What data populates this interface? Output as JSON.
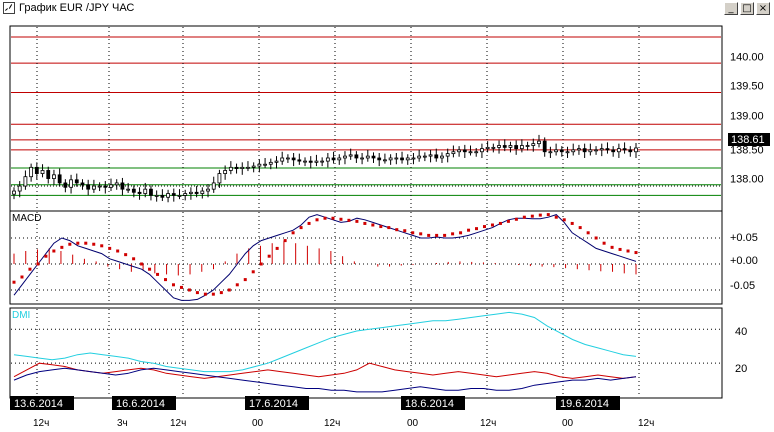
{
  "window": {
    "title": "График EUR /JPY  ЧАС",
    "buttons": {
      "minimize": "_",
      "maximize": "□",
      "close": "×"
    }
  },
  "colors": {
    "candle": "#000000",
    "resistance": "#c00000",
    "support": "#008000",
    "macd_line": "#00006e",
    "signal_dots": "#d00000",
    "histogram": "#d00000",
    "dmi_adx": "#22cfe0",
    "dmi_plus": "#cc0000",
    "dmi_minus": "#000080",
    "date_tag_bg": "#000000",
    "date_tag_text": "#ffffff"
  },
  "price_panel": {
    "current_price": "138.61",
    "ticks": [
      "140.00",
      "139.50",
      "139.00",
      "138.50",
      "138.00"
    ],
    "red_levels": [
      140.39,
      139.97,
      139.5,
      138.99,
      138.74,
      138.58
    ],
    "green_levels": [
      138.29,
      138.02,
      137.85
    ],
    "dotted_level": 138.0
  },
  "macd_panel": {
    "label": "MACD",
    "ticks": [
      "+0.05",
      "+0.00",
      "-0.05"
    ]
  },
  "dmi_panel": {
    "label": "DMI",
    "ticks": [
      "40",
      "20"
    ]
  },
  "time_axis": {
    "date_tags": [
      "13.6.2014",
      "16.6.2014",
      "17.6.2014",
      "18.6.2014",
      "19.6.2014"
    ],
    "hour_labels": [
      "12ч",
      "3ч",
      "12ч",
      "00",
      "12ч",
      "00",
      "12ч",
      "00",
      "12ч"
    ]
  },
  "chart_data": [
    {
      "type": "line",
      "subtype": "candlestick",
      "title": "",
      "ylim": [
        137.6,
        140.55
      ],
      "y_ticks": [
        138.0,
        138.5,
        139.0,
        139.5,
        140.0
      ],
      "last_value": 138.61,
      "close": [
        137.92,
        138.0,
        138.15,
        138.3,
        138.2,
        138.25,
        138.12,
        138.18,
        138.05,
        137.98,
        138.1,
        138.05,
        138.02,
        137.95,
        138.0,
        138.0,
        137.98,
        138.02,
        138.05,
        137.95,
        137.95,
        137.9,
        137.88,
        137.95,
        137.85,
        137.85,
        137.82,
        137.88,
        137.85,
        137.85,
        137.88,
        137.9,
        137.88,
        137.92,
        137.95,
        138.05,
        138.2,
        138.25,
        138.3,
        138.28,
        138.3,
        138.3,
        138.32,
        138.35,
        138.35,
        138.38,
        138.4,
        138.45,
        138.45,
        138.42,
        138.4,
        138.4,
        138.38,
        138.4,
        138.4,
        138.45,
        138.42,
        138.45,
        138.48,
        138.5,
        138.45,
        138.45,
        138.48,
        138.45,
        138.42,
        138.42,
        138.45,
        138.45,
        138.42,
        138.45,
        138.45,
        138.48,
        138.48,
        138.5,
        138.45,
        138.48,
        138.52,
        138.55,
        138.58,
        138.55,
        138.55,
        138.55,
        138.6,
        138.62,
        138.62,
        138.65,
        138.62,
        138.65,
        138.6,
        138.65,
        138.65,
        138.68,
        138.72,
        138.55,
        138.55,
        138.58,
        138.55,
        138.55,
        138.58,
        138.6,
        138.55,
        138.58,
        138.58,
        138.6,
        138.58,
        138.55,
        138.6,
        138.58,
        138.55,
        138.61
      ]
    },
    {
      "type": "line",
      "title": "",
      "ylim": [
        -0.075,
        0.1
      ],
      "y_ticks": [
        -0.05,
        0.0,
        0.05
      ],
      "series": [
        {
          "values": [
            -0.06,
            -0.04,
            -0.02,
            0.0,
            0.02,
            0.04,
            0.05,
            0.045,
            0.035,
            0.03,
            0.025,
            0.02,
            0.01,
            0.005,
            0.0,
            -0.005,
            -0.01,
            -0.02,
            -0.035,
            -0.05,
            -0.065,
            -0.07,
            -0.07,
            -0.068,
            -0.06,
            -0.05,
            -0.035,
            -0.02,
            0.0,
            0.02,
            0.035,
            0.045,
            0.05,
            0.055,
            0.06,
            0.065,
            0.075,
            0.09,
            0.095,
            0.09,
            0.085,
            0.08,
            0.082,
            0.088,
            0.085,
            0.08,
            0.075,
            0.07,
            0.065,
            0.06,
            0.055,
            0.05,
            0.05,
            0.052,
            0.05,
            0.05,
            0.052,
            0.055,
            0.06,
            0.065,
            0.07,
            0.078,
            0.085,
            0.088,
            0.088,
            0.087,
            0.087,
            0.09,
            0.095,
            0.08,
            0.06,
            0.05,
            0.04,
            0.03,
            0.025,
            0.02,
            0.015,
            0.01,
            0.005
          ]
        },
        {
          "values": [
            -0.035,
            -0.025,
            -0.01,
            0.0,
            0.015,
            0.025,
            0.032,
            0.038,
            0.04,
            0.04,
            0.038,
            0.035,
            0.03,
            0.025,
            0.018,
            0.01,
            0.0,
            -0.01,
            -0.02,
            -0.03,
            -0.04,
            -0.045,
            -0.05,
            -0.055,
            -0.058,
            -0.058,
            -0.055,
            -0.05,
            -0.04,
            -0.03,
            -0.015,
            0.0,
            0.015,
            0.03,
            0.045,
            0.06,
            0.07,
            0.078,
            0.085,
            0.088,
            0.088,
            0.086,
            0.084,
            0.082,
            0.078,
            0.075,
            0.072,
            0.07,
            0.066,
            0.064,
            0.06,
            0.058,
            0.055,
            0.055,
            0.055,
            0.058,
            0.06,
            0.065,
            0.068,
            0.072,
            0.075,
            0.078,
            0.082,
            0.086,
            0.09,
            0.092,
            0.094,
            0.095,
            0.09,
            0.085,
            0.078,
            0.07,
            0.06,
            0.05,
            0.04,
            0.032,
            0.028,
            0.025,
            0.022
          ]
        }
      ],
      "histogram": [
        0.02,
        0.025,
        0.028,
        0.03,
        0.025,
        0.018,
        0.01,
        0.005,
        -0.005,
        -0.01,
        -0.015,
        -0.012,
        -0.018,
        -0.02,
        -0.022,
        -0.02,
        -0.015,
        -0.01,
        0.005,
        0.02,
        0.03,
        0.035,
        0.04,
        0.045,
        0.04,
        0.035,
        0.03,
        0.025,
        0.015,
        0.005,
        0.0,
        -0.005,
        -0.005,
        -0.003,
        -0.002,
        0.0,
        0.002,
        0.004,
        0.005,
        0.004,
        0.003,
        0.002,
        0.0,
        -0.002,
        -0.004,
        -0.005,
        -0.006,
        -0.008,
        -0.01,
        -0.012,
        -0.014,
        -0.015,
        -0.018,
        -0.02
      ]
    },
    {
      "type": "line",
      "title": "",
      "ylim": [
        0,
        52
      ],
      "y_ticks": [
        20,
        40
      ],
      "series": [
        {
          "values": [
            25,
            24,
            23,
            22,
            23,
            25,
            26,
            25,
            24,
            23,
            21,
            20,
            18,
            17,
            16,
            15,
            15,
            15,
            16,
            18,
            20,
            23,
            26,
            29,
            32,
            35,
            37,
            39,
            40,
            41,
            42,
            43,
            44,
            45,
            45,
            46,
            47,
            48,
            49,
            50,
            49,
            47,
            42,
            38,
            34,
            31,
            29,
            27,
            25,
            24
          ]
        },
        {
          "values": [
            12,
            16,
            20,
            19,
            18,
            16,
            15,
            14,
            15,
            16,
            17,
            16,
            14,
            13,
            12,
            11,
            12,
            13,
            14,
            15,
            16,
            15,
            14,
            13,
            12,
            13,
            14,
            16,
            20,
            18,
            16,
            15,
            14,
            13,
            14,
            15,
            14,
            13,
            12,
            13,
            14,
            15,
            14,
            12,
            11,
            12,
            13,
            12,
            11,
            12
          ]
        },
        {
          "values": [
            10,
            13,
            15,
            16,
            17,
            16,
            15,
            14,
            13,
            14,
            16,
            17,
            16,
            15,
            14,
            13,
            12,
            11,
            10,
            9,
            8,
            7,
            6,
            5,
            5,
            4,
            4,
            3,
            3,
            3,
            4,
            5,
            6,
            5,
            4,
            4,
            5,
            5,
            4,
            4,
            5,
            7,
            8,
            9,
            10,
            10,
            11,
            10,
            11,
            12
          ]
        }
      ]
    }
  ]
}
